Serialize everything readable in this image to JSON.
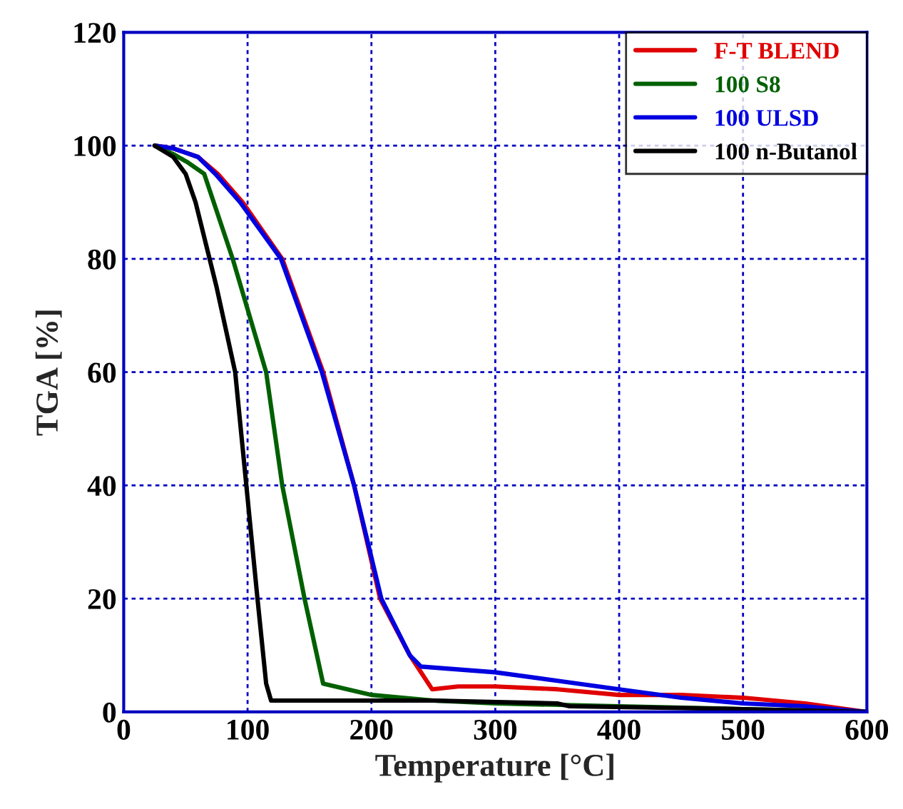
{
  "chart_data": {
    "type": "line",
    "xlabel": "Temperature [°C]",
    "ylabel": "TGA [%]",
    "xlim": [
      0,
      600
    ],
    "xticks": [
      0,
      100,
      200,
      300,
      400,
      500,
      600
    ],
    "ylim": [
      0,
      120
    ],
    "yticks": [
      0,
      20,
      40,
      60,
      80,
      100,
      120
    ],
    "grid": true,
    "legend": "top right",
    "line_style": "solid",
    "marker": "none",
    "series": [
      {
        "name": "F-T BLEND",
        "color": "#e00000",
        "x": [
          25,
          40,
          60,
          76,
          96,
          128,
          161,
          186,
          207,
          231,
          249,
          270,
          300,
          350,
          400,
          450,
          500,
          550,
          600
        ],
        "values": [
          100,
          99.5,
          98,
          95,
          90,
          80,
          60,
          40,
          20,
          10,
          4,
          4.5,
          4.5,
          4,
          3,
          3,
          2.5,
          1.5,
          0
        ]
      },
      {
        "name": "100 S8",
        "color": "#006000",
        "x": [
          25,
          40,
          52,
          65,
          88,
          115,
          128,
          146,
          161,
          200,
          250,
          300,
          400,
          500,
          600
        ],
        "values": [
          100,
          98.5,
          97,
          95,
          80,
          60,
          40,
          20,
          5,
          3,
          2,
          1.5,
          1,
          0.5,
          0
        ]
      },
      {
        "name": "100 ULSD",
        "color": "#0000e0",
        "x": [
          25,
          40,
          60,
          74,
          94,
          127,
          160,
          186,
          208,
          231,
          240,
          270,
          300,
          350,
          400,
          450,
          500,
          550,
          600
        ],
        "values": [
          100,
          99.5,
          98,
          95,
          90,
          80,
          60,
          40,
          20,
          10,
          8,
          7.5,
          7,
          5.5,
          4,
          2.5,
          1.5,
          1,
          0
        ]
      },
      {
        "name": "100 n-Butanol",
        "color": "#000000",
        "x": [
          25,
          40,
          50,
          58,
          75,
          90,
          99,
          108,
          115,
          119,
          150,
          250,
          350,
          360,
          500,
          600
        ],
        "values": [
          100,
          98,
          95,
          90,
          75,
          60,
          40,
          20,
          5,
          2,
          2,
          2,
          1.5,
          1,
          0.5,
          0
        ]
      }
    ]
  }
}
